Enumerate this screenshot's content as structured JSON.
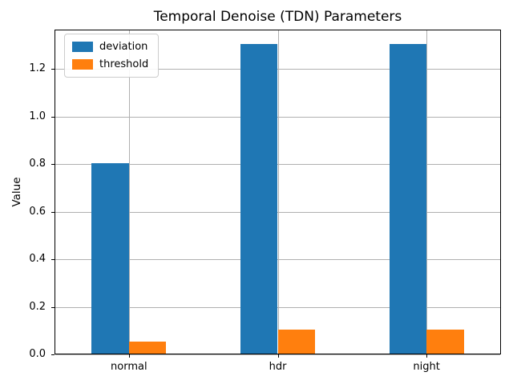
{
  "chart_data": {
    "type": "bar",
    "title": "Temporal Denoise (TDN) Parameters",
    "xlabel": "",
    "ylabel": "Value",
    "categories": [
      "normal",
      "hdr",
      "night"
    ],
    "series": [
      {
        "name": "deviation",
        "color": "#1f77b4",
        "values": [
          0.8,
          1.3,
          1.3
        ]
      },
      {
        "name": "threshold",
        "color": "#ff7f0e",
        "values": [
          0.05,
          0.1,
          0.1
        ]
      }
    ],
    "ylim": [
      0,
      1.365
    ],
    "yticks": [
      0.0,
      0.2,
      0.4,
      0.6,
      0.8,
      1.0,
      1.2
    ],
    "ytick_labels": [
      "0.0",
      "0.2",
      "0.4",
      "0.6",
      "0.8",
      "1.0",
      "1.2"
    ],
    "grid": true,
    "legend_position": "upper left",
    "bar_width_fraction": 0.25
  },
  "colors": {
    "series_deviation": "#1f77b4",
    "series_threshold": "#ff7f0e",
    "grid": "#b0b0b0",
    "spine": "#000000",
    "background": "#ffffff",
    "text": "#000000",
    "legend_border": "#cccccc"
  }
}
